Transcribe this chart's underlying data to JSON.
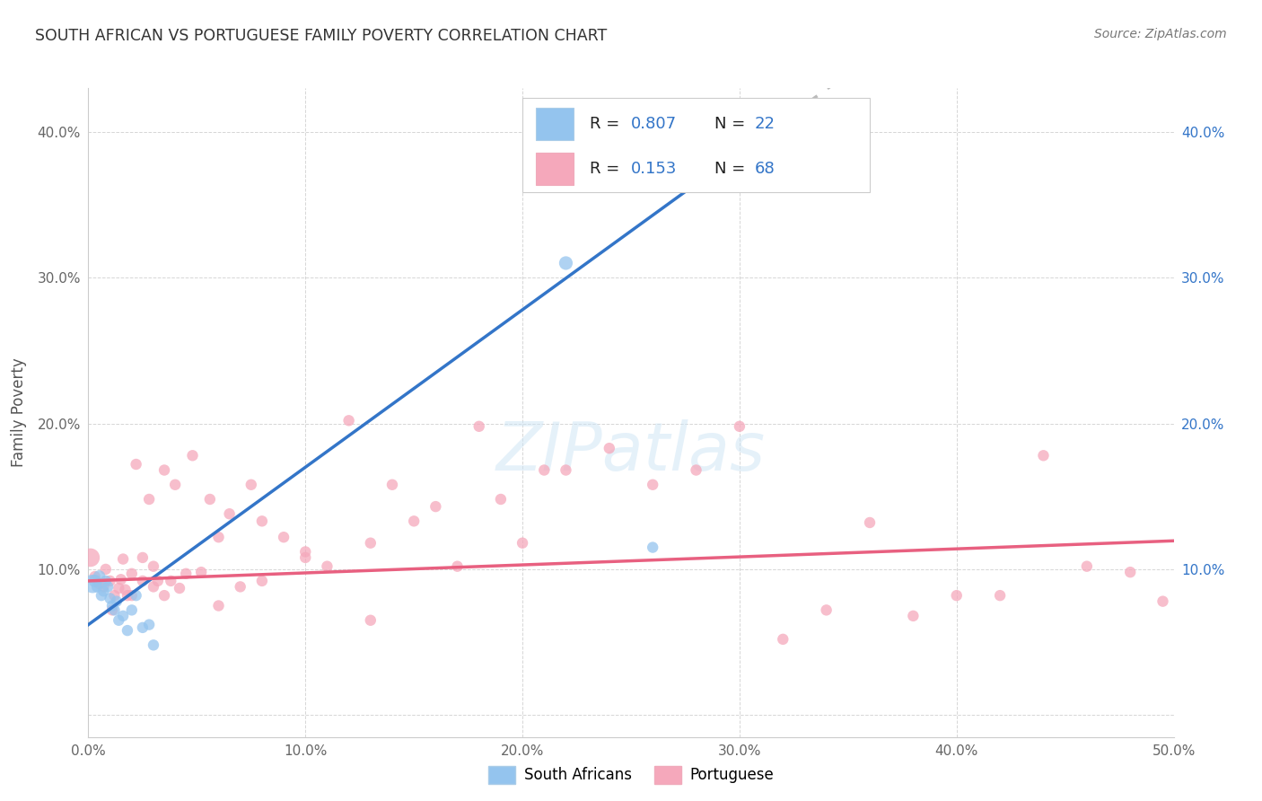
{
  "title": "SOUTH AFRICAN VS PORTUGUESE FAMILY POVERTY CORRELATION CHART",
  "source": "Source: ZipAtlas.com",
  "ylabel": "Family Poverty",
  "xlim": [
    0.0,
    0.5
  ],
  "ylim": [
    -0.015,
    0.43
  ],
  "xticks": [
    0.0,
    0.1,
    0.2,
    0.3,
    0.4,
    0.5
  ],
  "yticks": [
    0.0,
    0.1,
    0.2,
    0.3,
    0.4
  ],
  "ytick_labels": [
    "",
    "10.0%",
    "20.0%",
    "30.0%",
    "40.0%"
  ],
  "xtick_labels": [
    "0.0%",
    "10.0%",
    "20.0%",
    "30.0%",
    "40.0%",
    "50.0%"
  ],
  "background_color": "#ffffff",
  "grid_color": "#cccccc",
  "south_african_color": "#94C4EE",
  "portuguese_color": "#F5A8BB",
  "trendline1_color": "#3375C8",
  "trendline2_color": "#E86080",
  "trendline_ext_color": "#bbbbbb",
  "sa_x": [
    0.002,
    0.003,
    0.004,
    0.005,
    0.006,
    0.007,
    0.008,
    0.009,
    0.01,
    0.011,
    0.012,
    0.013,
    0.014,
    0.016,
    0.018,
    0.02,
    0.022,
    0.025,
    0.028,
    0.03,
    0.22,
    0.26
  ],
  "sa_y": [
    0.09,
    0.092,
    0.088,
    0.095,
    0.082,
    0.085,
    0.092,
    0.088,
    0.08,
    0.075,
    0.072,
    0.078,
    0.065,
    0.068,
    0.058,
    0.072,
    0.082,
    0.06,
    0.062,
    0.048,
    0.31,
    0.115
  ],
  "sa_size": [
    220,
    100,
    80,
    100,
    80,
    80,
    80,
    80,
    80,
    80,
    80,
    80,
    80,
    80,
    80,
    80,
    80,
    80,
    80,
    80,
    120,
    80
  ],
  "port_x": [
    0.001,
    0.003,
    0.005,
    0.007,
    0.008,
    0.01,
    0.011,
    0.012,
    0.014,
    0.015,
    0.016,
    0.017,
    0.018,
    0.02,
    0.022,
    0.025,
    0.028,
    0.03,
    0.032,
    0.035,
    0.038,
    0.04,
    0.042,
    0.045,
    0.048,
    0.052,
    0.056,
    0.06,
    0.065,
    0.07,
    0.075,
    0.08,
    0.09,
    0.1,
    0.11,
    0.12,
    0.13,
    0.14,
    0.15,
    0.16,
    0.17,
    0.18,
    0.19,
    0.2,
    0.21,
    0.22,
    0.24,
    0.26,
    0.28,
    0.3,
    0.32,
    0.34,
    0.36,
    0.38,
    0.4,
    0.42,
    0.44,
    0.46,
    0.48,
    0.495,
    0.02,
    0.025,
    0.03,
    0.035,
    0.06,
    0.08,
    0.1,
    0.13
  ],
  "port_y": [
    0.108,
    0.095,
    0.09,
    0.088,
    0.1,
    0.092,
    0.072,
    0.082,
    0.087,
    0.093,
    0.107,
    0.086,
    0.082,
    0.097,
    0.172,
    0.092,
    0.148,
    0.102,
    0.092,
    0.168,
    0.092,
    0.158,
    0.087,
    0.097,
    0.178,
    0.098,
    0.148,
    0.122,
    0.138,
    0.088,
    0.158,
    0.133,
    0.122,
    0.112,
    0.102,
    0.202,
    0.118,
    0.158,
    0.133,
    0.143,
    0.102,
    0.198,
    0.148,
    0.118,
    0.168,
    0.168,
    0.183,
    0.158,
    0.168,
    0.198,
    0.052,
    0.072,
    0.132,
    0.068,
    0.082,
    0.082,
    0.178,
    0.102,
    0.098,
    0.078,
    0.082,
    0.108,
    0.088,
    0.082,
    0.075,
    0.092,
    0.108,
    0.065
  ],
  "port_size": [
    220,
    80,
    80,
    80,
    80,
    80,
    80,
    80,
    80,
    80,
    80,
    80,
    80,
    80,
    80,
    80,
    80,
    80,
    80,
    80,
    80,
    80,
    80,
    80,
    80,
    80,
    80,
    80,
    80,
    80,
    80,
    80,
    80,
    80,
    80,
    80,
    80,
    80,
    80,
    80,
    80,
    80,
    80,
    80,
    80,
    80,
    80,
    80,
    80,
    80,
    80,
    80,
    80,
    80,
    80,
    80,
    80,
    80,
    80,
    80,
    80,
    80,
    80,
    80,
    80,
    80,
    80,
    80
  ],
  "sa_trend_x0": -0.002,
  "sa_trend_x1": 0.33,
  "sa_trend_ext_x1": 0.5,
  "sa_slope": 1.08,
  "sa_intercept": 0.062,
  "port_slope": 0.055,
  "port_intercept": 0.092,
  "legend_r1": "R = 0.807",
  "legend_n1": "N = 22",
  "legend_r2": "R =  0.153",
  "legend_n2": "N = 68"
}
